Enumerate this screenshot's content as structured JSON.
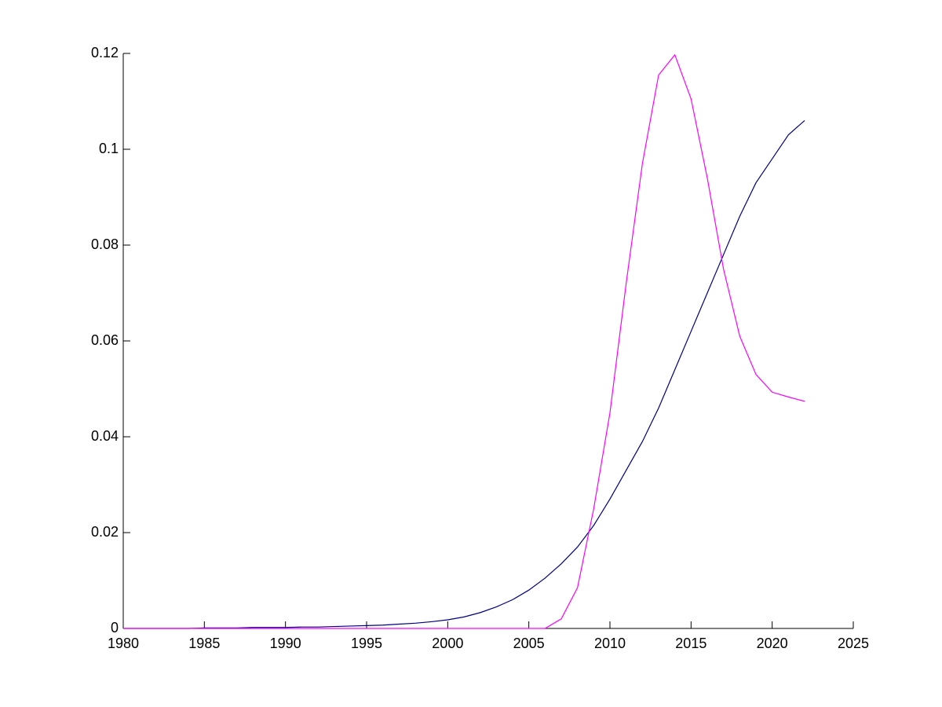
{
  "chart_data": {
    "type": "line",
    "x": [
      1980,
      1981,
      1982,
      1983,
      1984,
      1985,
      1986,
      1987,
      1988,
      1989,
      1990,
      1991,
      1992,
      1993,
      1994,
      1995,
      1996,
      1997,
      1998,
      1999,
      2000,
      2001,
      2002,
      2003,
      2004,
      2005,
      2006,
      2007,
      2008,
      2009,
      2010,
      2011,
      2012,
      2013,
      2014,
      2015,
      2016,
      2017,
      2018,
      2019,
      2020,
      2021,
      2022
    ],
    "series": [
      {
        "color": "#000080",
        "values": [
          0,
          0,
          0,
          0,
          0,
          0.0001,
          0.0001,
          0.0001,
          0.0002,
          0.0002,
          0.0002,
          0.0003,
          0.0003,
          0.0004,
          0.0005,
          0.0006,
          0.0007,
          0.0009,
          0.0011,
          0.0014,
          0.0018,
          0.0024,
          0.0033,
          0.0045,
          0.006,
          0.008,
          0.0105,
          0.0135,
          0.017,
          0.0215,
          0.027,
          0.033,
          0.039,
          0.046,
          0.054,
          0.062,
          0.07,
          0.078,
          0.086,
          0.093,
          0.098,
          0.103,
          0.106
        ]
      },
      {
        "color": "#ff00ff",
        "values": [
          0,
          0,
          0,
          0,
          0,
          0,
          0,
          0,
          0,
          0,
          0,
          0,
          0,
          0,
          0,
          0,
          0,
          0,
          0,
          0,
          0,
          0,
          0,
          0,
          0,
          0,
          0,
          0.002,
          0.0085,
          0.025,
          0.045,
          0.072,
          0.097,
          0.1155,
          0.1197,
          0.1105,
          0.094,
          0.075,
          0.061,
          0.053,
          0.0493,
          0.0483,
          0.0474
        ]
      }
    ],
    "xlim": [
      1980,
      2025
    ],
    "xticks": [
      1980,
      1985,
      1990,
      1995,
      2000,
      2005,
      2010,
      2015,
      2020,
      2025
    ],
    "ylim": [
      0,
      0.12
    ],
    "yticks": [
      0,
      0.02,
      0.04,
      0.06,
      0.08,
      0.1,
      0.12
    ]
  }
}
